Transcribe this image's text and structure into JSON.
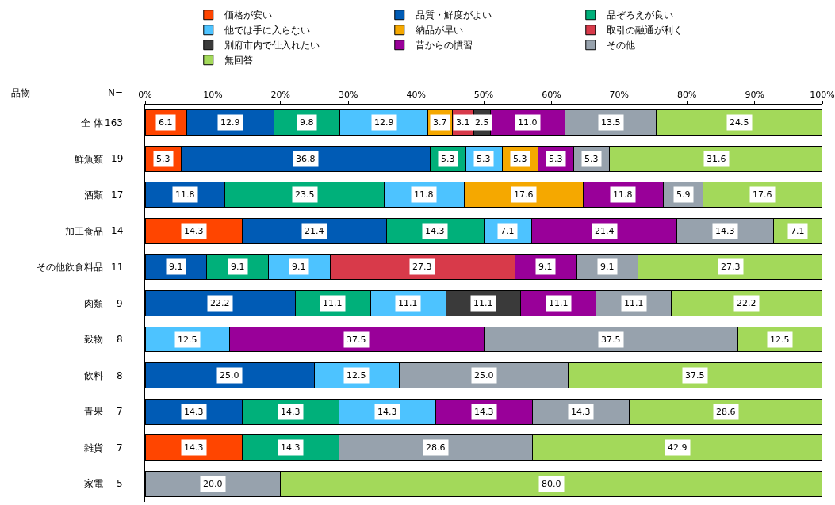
{
  "chart_data": {
    "type": "bar",
    "orientation": "horizontal",
    "stacked": true,
    "categories": [
      "全 体",
      "鮮魚類",
      "酒類",
      "加工食品",
      "その他飲食料品",
      "肉類",
      "穀物",
      "飲料",
      "青果",
      "雑貨",
      "家電"
    ],
    "xlim": [
      0,
      100
    ],
    "xticks": [
      {
        "value": 0,
        "label": "0%"
      },
      {
        "value": 10,
        "label": "10%"
      },
      {
        "value": 20,
        "label": "20%"
      },
      {
        "value": 30,
        "label": "30%"
      },
      {
        "value": 40,
        "label": "40%"
      },
      {
        "value": 50,
        "label": "50%"
      },
      {
        "value": 60,
        "label": "60%"
      },
      {
        "value": 70,
        "label": "70%"
      },
      {
        "value": 80,
        "label": "80%"
      },
      {
        "value": 90,
        "label": "90%"
      },
      {
        "value": 100,
        "label": "100%"
      }
    ],
    "grid": false,
    "legend": "top",
    "annotations": [
      "品物",
      "N=",
      "163",
      "19",
      "17",
      "14",
      "11",
      "9",
      "8",
      "8",
      "7",
      "7",
      "5"
    ],
    "series": [
      {
        "name": "価格が安い",
        "color": "#ff4500",
        "values": [
          6.1,
          5.3,
          null,
          14.3,
          null,
          null,
          null,
          null,
          null,
          14.3,
          null
        ],
        "value_labels": [
          "6.1",
          "5.3",
          null,
          "14.3",
          null,
          null,
          null,
          null,
          null,
          "14.3",
          null
        ]
      },
      {
        "name": "品質・鮮度がよい",
        "color": "#005bb5",
        "values": [
          12.9,
          36.8,
          11.8,
          21.4,
          9.1,
          22.2,
          null,
          25.0,
          14.3,
          null,
          null
        ],
        "value_labels": [
          "12.9",
          "36.8",
          "11.8",
          "21.4",
          "9.1",
          "22.2",
          null,
          "25.0",
          "14.3",
          null,
          null
        ]
      },
      {
        "name": "品ぞろえが良い",
        "color": "#00b07a",
        "values": [
          9.8,
          5.3,
          23.5,
          14.3,
          9.1,
          11.1,
          null,
          null,
          14.3,
          14.3,
          null
        ],
        "value_labels": [
          "9.8",
          "5.3",
          "23.5",
          "14.3",
          "9.1",
          "11.1",
          null,
          null,
          "14.3",
          "14.3",
          null
        ]
      },
      {
        "name": "他では手に入らない",
        "color": "#4dc3ff",
        "values": [
          12.9,
          5.3,
          11.8,
          7.1,
          9.1,
          11.1,
          12.5,
          12.5,
          14.3,
          null,
          null
        ],
        "value_labels": [
          "12.9",
          "5.3",
          "11.8",
          "7.1",
          "9.1",
          "11.1",
          "12.5",
          "12.5",
          "14.3",
          null,
          null
        ]
      },
      {
        "name": "納品が早い",
        "color": "#f5a800",
        "values": [
          3.7,
          5.3,
          17.6,
          null,
          null,
          null,
          null,
          null,
          null,
          null,
          null
        ],
        "value_labels": [
          "3.7",
          "5.3",
          "17.6",
          null,
          null,
          null,
          null,
          null,
          null,
          null,
          null
        ]
      },
      {
        "name": "取引の融通が利く",
        "color": "#d83a4a",
        "values": [
          3.1,
          null,
          null,
          null,
          27.3,
          null,
          null,
          null,
          null,
          null,
          null
        ],
        "value_labels": [
          "3.1",
          null,
          null,
          null,
          "27.3",
          null,
          null,
          null,
          null,
          null,
          null
        ]
      },
      {
        "name": "別府市内で仕入れたい",
        "color": "#3a3a3a",
        "values": [
          2.5,
          null,
          null,
          null,
          null,
          11.1,
          null,
          null,
          null,
          null,
          null
        ],
        "value_labels": [
          "2.5",
          null,
          null,
          null,
          null,
          "11.1",
          null,
          null,
          null,
          null,
          null
        ]
      },
      {
        "name": "昔からの慣習",
        "color": "#990099",
        "values": [
          11.0,
          5.3,
          11.8,
          21.4,
          9.1,
          11.1,
          37.5,
          null,
          14.3,
          null,
          null
        ],
        "value_labels": [
          "11.0",
          "5.3",
          "11.8",
          "21.4",
          "9.1",
          "11.1",
          "37.5",
          null,
          "14.3",
          null,
          null
        ]
      },
      {
        "name": "その他",
        "color": "#97a2ad",
        "values": [
          13.5,
          5.3,
          5.9,
          14.3,
          9.1,
          11.1,
          37.5,
          25.0,
          14.3,
          28.6,
          20.0
        ],
        "value_labels": [
          "13.5",
          "5.3",
          "5.9",
          "14.3",
          "9.1",
          "11.1",
          "37.5",
          "25.0",
          "14.3",
          "28.6",
          "20.0"
        ]
      },
      {
        "name": "無回答",
        "color": "#a3d95a",
        "values": [
          24.5,
          31.6,
          17.6,
          7.1,
          27.3,
          22.2,
          12.5,
          37.5,
          28.6,
          42.9,
          80.0
        ],
        "value_labels": [
          "24.5",
          "31.6",
          "17.6",
          "7.1",
          "27.3",
          "22.2",
          "12.5",
          "37.5",
          "28.6",
          "42.9",
          "80.0"
        ]
      }
    ]
  }
}
